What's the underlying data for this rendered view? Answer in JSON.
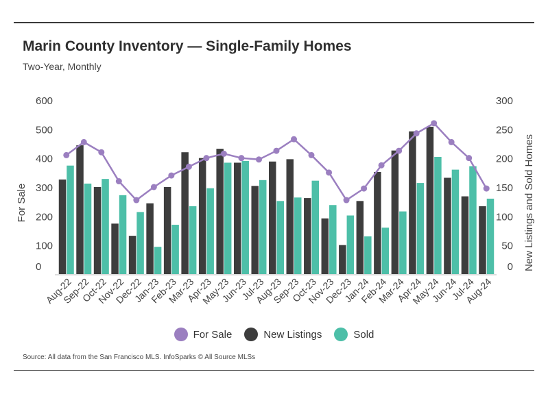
{
  "header": {
    "title": "Marin County Inventory — Single-Family Homes",
    "subtitle": "Two-Year, Monthly"
  },
  "footer": {
    "source": "Source:  All data from the San Francisco MLS. InfoSparks © All Source MLSs"
  },
  "colors": {
    "for_sale": "#9b7fc0",
    "new_listings": "#3d3d3d",
    "sold": "#4dbfa8"
  },
  "chart_data": {
    "type": "bar",
    "title": "Marin County Inventory — Single-Family Homes",
    "subtitle": "Two-Year, Monthly",
    "categories": [
      "Aug-22",
      "Sep-22",
      "Oct-22",
      "Nov-22",
      "Dec-22",
      "Jan-23",
      "Feb-23",
      "Mar-23",
      "Apr-23",
      "May-23",
      "Jun-23",
      "Jul-23",
      "Aug-23",
      "Sep-23",
      "Oct-23",
      "Nov-23",
      "Dec-23",
      "Jan-24",
      "Feb-24",
      "Mar-24",
      "Apr-24",
      "May-24",
      "Jun-24",
      "Jul-24",
      "Aug-24"
    ],
    "ylabel_left": "For Sale",
    "ylabel_right": "New Listings and Sold Homes",
    "ylim_left": [
      0,
      600
    ],
    "ylim_right": [
      0,
      300
    ],
    "yticks_left": [
      "0",
      "100",
      "200",
      "300",
      "400",
      "500",
      "600"
    ],
    "yticks_right": [
      "0",
      "50",
      "100",
      "150",
      "200",
      "250",
      "300"
    ],
    "series": [
      {
        "name": "For Sale",
        "type": "line",
        "axis": "left",
        "values": [
          410,
          455,
          420,
          320,
          255,
          300,
          340,
          370,
          400,
          415,
          400,
          395,
          425,
          465,
          410,
          350,
          255,
          295,
          375,
          425,
          485,
          520,
          455,
          400,
          295
        ]
      },
      {
        "name": "New Listings",
        "type": "bar",
        "axis": "right",
        "values": [
          163,
          222,
          150,
          87,
          66,
          122,
          150,
          210,
          200,
          216,
          192,
          152,
          194,
          198,
          131,
          96,
          50,
          126,
          176,
          213,
          246,
          254,
          166,
          134,
          117
        ]
      },
      {
        "name": "Sold",
        "type": "bar",
        "axis": "right",
        "values": [
          187,
          156,
          164,
          136,
          107,
          47,
          85,
          117,
          148,
          192,
          195,
          162,
          126,
          132,
          161,
          119,
          101,
          65,
          80,
          108,
          157,
          202,
          180,
          186,
          130
        ]
      }
    ],
    "legend": [
      "For Sale",
      "New Listings",
      "Sold"
    ],
    "legend_position": "bottom-center",
    "grid": false
  }
}
